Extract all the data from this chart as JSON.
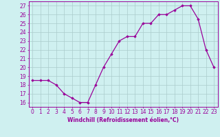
{
  "x": [
    0,
    1,
    2,
    3,
    4,
    5,
    6,
    7,
    8,
    9,
    10,
    11,
    12,
    13,
    14,
    15,
    16,
    17,
    18,
    19,
    20,
    21,
    22,
    23
  ],
  "y": [
    18.5,
    18.5,
    18.5,
    18.0,
    17.0,
    16.5,
    16.0,
    16.0,
    18.0,
    20.0,
    21.5,
    23.0,
    23.5,
    23.5,
    25.0,
    25.0,
    26.0,
    26.0,
    26.5,
    27.0,
    27.0,
    25.5,
    22.0,
    20.0
  ],
  "line_color": "#990099",
  "marker": "D",
  "marker_size": 1.8,
  "line_width": 0.9,
  "xlim": [
    -0.5,
    23.5
  ],
  "ylim": [
    15.5,
    27.5
  ],
  "yticks": [
    16,
    17,
    18,
    19,
    20,
    21,
    22,
    23,
    24,
    25,
    26,
    27
  ],
  "xticks": [
    0,
    1,
    2,
    3,
    4,
    5,
    6,
    7,
    8,
    9,
    10,
    11,
    12,
    13,
    14,
    15,
    16,
    17,
    18,
    19,
    20,
    21,
    22,
    23
  ],
  "xlabel": "Windchill (Refroidissement éolien,°C)",
  "bg_color": "#cff0f0",
  "grid_color": "#aacccc",
  "tick_color": "#990099",
  "label_color": "#990099",
  "tick_fontsize": 5.5,
  "label_fontsize": 5.5
}
